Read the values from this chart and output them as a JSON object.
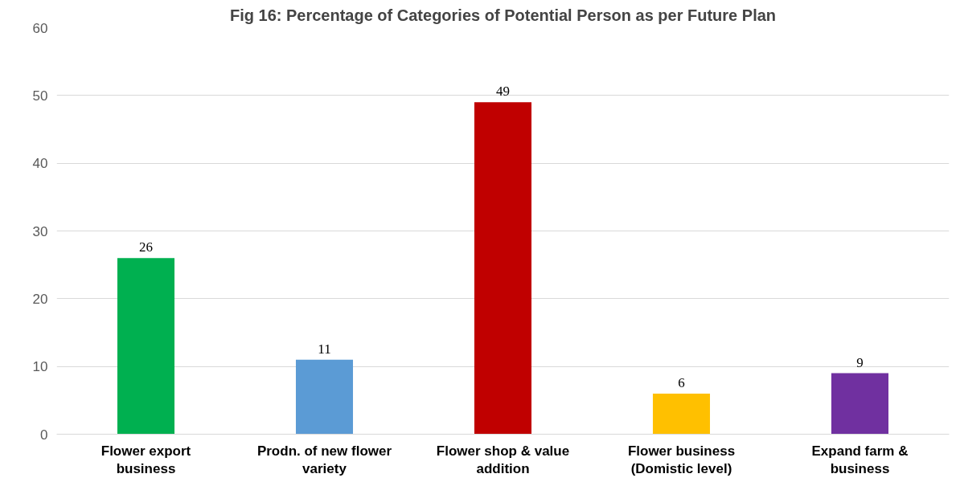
{
  "chart_data": {
    "type": "bar",
    "title": "Fig 16: Percentage of Categories of Potential Person as per Future Plan",
    "categories": [
      "Flower export\nbusiness",
      "Prodn. of new flower\nvariety",
      "Flower shop & value\naddition",
      "Flower business\n(Domistic level)",
      "Expand farm &\nbusiness"
    ],
    "values": [
      26,
      11,
      49,
      6,
      9
    ],
    "colors": [
      "#00b050",
      "#5b9bd5",
      "#c00000",
      "#ffc000",
      "#7030a0"
    ],
    "ylim": [
      0,
      60
    ],
    "yticks": [
      0,
      10,
      20,
      30,
      40,
      50,
      60
    ],
    "grid": "y",
    "data_labels": true
  }
}
